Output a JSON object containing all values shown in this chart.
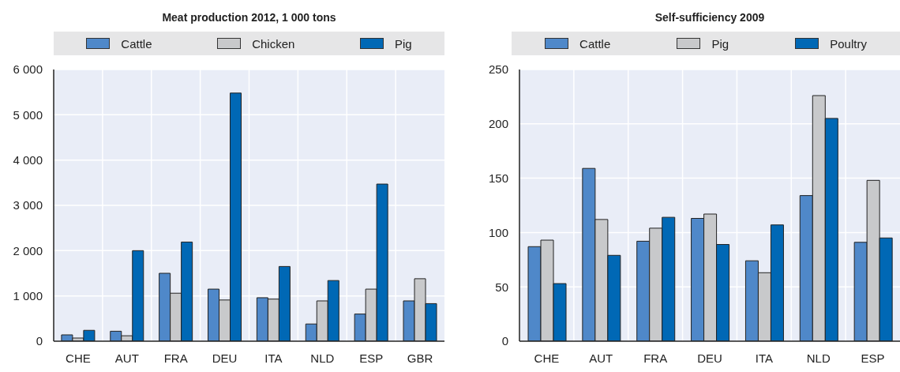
{
  "chart_data": [
    {
      "type": "bar",
      "title": "Meat production 2012, 1 000 tons",
      "categories": [
        "CHE",
        "AUT",
        "FRA",
        "DEU",
        "ITA",
        "NLD",
        "ESP",
        "GBR"
      ],
      "series": [
        {
          "name": "Cattle",
          "color": "#4f88c9",
          "values": [
            140,
            220,
            1500,
            1150,
            960,
            380,
            600,
            890
          ]
        },
        {
          "name": "Chicken",
          "color": "#c8c9cb",
          "values": [
            70,
            120,
            1060,
            910,
            930,
            890,
            1150,
            1380
          ]
        },
        {
          "name": "Pig",
          "color": "#0068b5",
          "values": [
            240,
            2000,
            2190,
            5480,
            1650,
            1340,
            3470,
            830
          ]
        }
      ],
      "ylim": [
        0,
        6000
      ],
      "yticks": [
        {
          "value": 0,
          "label": "0"
        },
        {
          "value": 1000,
          "label": "1 000"
        },
        {
          "value": 2000,
          "label": "2 000"
        },
        {
          "value": 3000,
          "label": "3 000"
        },
        {
          "value": 4000,
          "label": "4 000"
        },
        {
          "value": 5000,
          "label": "5 000"
        },
        {
          "value": 6000,
          "label": "6 000"
        }
      ],
      "grid": true,
      "legend": "top"
    },
    {
      "type": "bar",
      "title": "Self-sufficiency 2009",
      "categories": [
        "CHE",
        "AUT",
        "FRA",
        "DEU",
        "ITA",
        "NLD",
        "ESP"
      ],
      "series": [
        {
          "name": "Cattle",
          "color": "#4f88c9",
          "values": [
            87,
            159,
            92,
            113,
            74,
            134,
            91
          ]
        },
        {
          "name": "Pig",
          "color": "#c8c9cb",
          "values": [
            93,
            112,
            104,
            117,
            63,
            226,
            148
          ]
        },
        {
          "name": "Poultry",
          "color": "#0068b5",
          "values": [
            53,
            79,
            114,
            89,
            107,
            205,
            95
          ]
        }
      ],
      "ylim": [
        0,
        250
      ],
      "yticks": [
        0,
        50,
        100,
        150,
        200,
        250
      ],
      "grid": true,
      "legend": "top"
    }
  ]
}
